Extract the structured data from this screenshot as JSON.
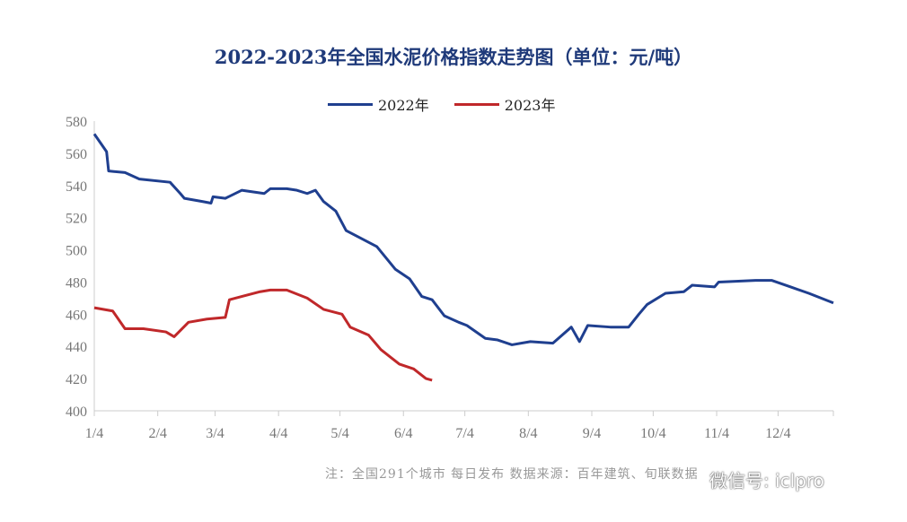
{
  "chart_data": {
    "type": "line",
    "title": "2022-2023年全国水泥价格指数走势图（单位：元/吨）",
    "xlabel": "",
    "ylabel": "",
    "ylim": [
      400,
      580
    ],
    "yticks": [
      400,
      420,
      440,
      460,
      480,
      500,
      520,
      540,
      560,
      580
    ],
    "xticks": [
      {
        "label": "1/4",
        "day": 0
      },
      {
        "label": "2/4",
        "day": 31
      },
      {
        "label": "3/4",
        "day": 59
      },
      {
        "label": "4/4",
        "day": 90
      },
      {
        "label": "5/4",
        "day": 120
      },
      {
        "label": "6/4",
        "day": 151
      },
      {
        "label": "7/4",
        "day": 181
      },
      {
        "label": "8/4",
        "day": 212
      },
      {
        "label": "9/4",
        "day": 243
      },
      {
        "label": "10/4",
        "day": 273
      },
      {
        "label": "11/4",
        "day": 304
      },
      {
        "label": "12/4",
        "day": 334
      }
    ],
    "xlim": [
      0,
      361
    ],
    "legend_position": "top-center",
    "series": [
      {
        "name": "2022年",
        "color": "#1f3f8f",
        "points": [
          [
            0,
            572
          ],
          [
            6,
            561
          ],
          [
            7,
            549
          ],
          [
            15,
            548
          ],
          [
            22,
            544
          ],
          [
            37,
            542
          ],
          [
            42,
            535
          ],
          [
            44,
            532
          ],
          [
            53,
            530
          ],
          [
            57,
            529
          ],
          [
            58,
            533
          ],
          [
            64,
            532
          ],
          [
            72,
            537
          ],
          [
            83,
            535
          ],
          [
            86,
            538
          ],
          [
            94,
            538
          ],
          [
            99,
            537
          ],
          [
            104,
            535
          ],
          [
            108,
            537
          ],
          [
            112,
            530
          ],
          [
            118,
            524
          ],
          [
            123,
            512
          ],
          [
            129,
            508
          ],
          [
            138,
            502
          ],
          [
            147,
            488
          ],
          [
            154,
            482
          ],
          [
            160,
            471
          ],
          [
            165,
            469
          ],
          [
            171,
            459
          ],
          [
            178,
            455
          ],
          [
            182,
            453
          ],
          [
            191,
            445
          ],
          [
            197,
            444
          ],
          [
            204,
            441
          ],
          [
            213,
            443
          ],
          [
            224,
            442
          ],
          [
            233,
            452
          ],
          [
            237,
            443
          ],
          [
            241,
            453
          ],
          [
            252,
            452
          ],
          [
            261,
            452
          ],
          [
            266,
            460
          ],
          [
            270,
            466
          ],
          [
            279,
            473
          ],
          [
            288,
            474
          ],
          [
            292,
            478
          ],
          [
            303,
            477
          ],
          [
            305,
            480
          ],
          [
            323,
            481
          ],
          [
            331,
            481
          ],
          [
            340,
            477
          ],
          [
            349,
            473
          ],
          [
            361,
            467
          ]
        ]
      },
      {
        "name": "2023年",
        "color": "#c0282a",
        "points": [
          [
            0,
            464
          ],
          [
            9,
            462
          ],
          [
            15,
            451
          ],
          [
            24,
            451
          ],
          [
            35,
            449
          ],
          [
            39,
            446
          ],
          [
            46,
            455
          ],
          [
            55,
            457
          ],
          [
            64,
            458
          ],
          [
            66,
            469
          ],
          [
            72,
            471
          ],
          [
            81,
            474
          ],
          [
            86,
            475
          ],
          [
            94,
            475
          ],
          [
            104,
            470
          ],
          [
            112,
            463
          ],
          [
            121,
            460
          ],
          [
            125,
            452
          ],
          [
            134,
            447
          ],
          [
            140,
            438
          ],
          [
            145,
            433
          ],
          [
            149,
            429
          ],
          [
            156,
            426
          ],
          [
            162,
            420
          ],
          [
            165,
            419
          ]
        ]
      }
    ],
    "note": "注：全国291个城市  每日发布  数据来源：百年建筑、旬联数据",
    "watermark": "微信号: iclpro"
  }
}
